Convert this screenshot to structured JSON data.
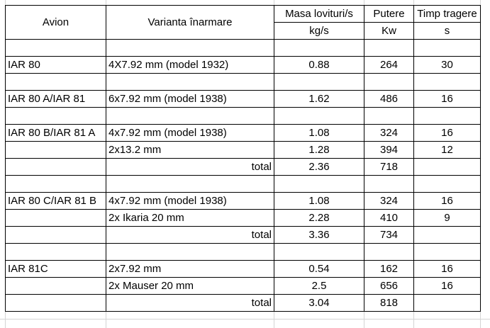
{
  "header": {
    "avion": "Avion",
    "varianta": "Varianta înarmare",
    "masa": "Masa lovituri/s",
    "masa_unit": "kg/s",
    "putere": "Putere",
    "putere_unit": "Kw",
    "timp": "Timp tragere",
    "timp_unit": "s"
  },
  "rows": [
    {
      "avion": "",
      "varianta": "",
      "masa": "",
      "putere": "",
      "timp": ""
    },
    {
      "avion": "IAR 80",
      "varianta": "4X7.92 mm (model 1932)",
      "masa": "0.88",
      "putere": "264",
      "timp": "30"
    },
    {
      "avion": "",
      "varianta": "",
      "masa": "",
      "putere": "",
      "timp": ""
    },
    {
      "avion": "IAR 80 A/IAR 81",
      "varianta": "6x7.92 mm (model 1938)",
      "masa": "1.62",
      "putere": "486",
      "timp": "16"
    },
    {
      "avion": "",
      "varianta": "",
      "masa": "",
      "putere": "",
      "timp": ""
    },
    {
      "avion": "IAR 80 B/IAR 81 A",
      "varianta": "4x7.92 mm (model 1938)",
      "masa": "1.08",
      "putere": "324",
      "timp": "16"
    },
    {
      "avion": "",
      "varianta": "2x13.2 mm",
      "masa": "1.28",
      "putere": "394",
      "timp": "12"
    },
    {
      "avion": "",
      "varianta": "total",
      "masa": "2.36",
      "putere": "718",
      "timp": "",
      "total": true
    },
    {
      "avion": "",
      "varianta": "",
      "masa": "",
      "putere": "",
      "timp": ""
    },
    {
      "avion": "IAR 80 C/IAR  81 B",
      "varianta": "4x7.92 mm (model 1938)",
      "masa": "1.08",
      "putere": "324",
      "timp": "16"
    },
    {
      "avion": "",
      "varianta": "2x Ikaria 20 mm",
      "masa": "2.28",
      "putere": "410",
      "timp": "9"
    },
    {
      "avion": "",
      "varianta": "total",
      "masa": "3.36",
      "putere": "734",
      "timp": "",
      "total": true
    },
    {
      "avion": "",
      "varianta": "",
      "masa": "",
      "putere": "",
      "timp": ""
    },
    {
      "avion": "IAR 81C",
      "varianta": "2x7.92 mm",
      "masa": "0.54",
      "putere": "162",
      "timp": "16"
    },
    {
      "avion": "",
      "varianta": "2x Mauser 20 mm",
      "masa": "2.5",
      "putere": "656",
      "timp": "16"
    },
    {
      "avion": "",
      "varianta": "total",
      "masa": "3.04",
      "putere": "818",
      "timp": "",
      "total": true
    }
  ]
}
